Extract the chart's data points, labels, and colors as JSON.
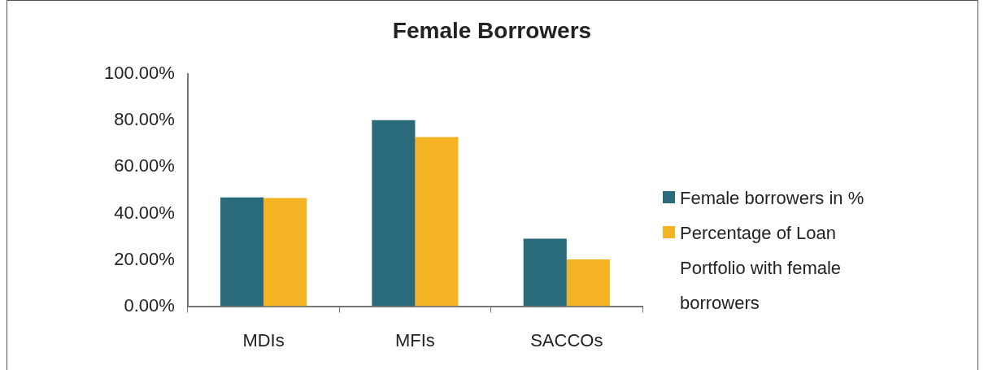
{
  "chart_data": {
    "type": "bar",
    "title": "Female Borrowers",
    "categories": [
      "MDIs",
      "MFIs",
      "SACCOs"
    ],
    "series": [
      {
        "name": "Female borrowers in %",
        "color": "#296a7b",
        "values": [
          46.9,
          80.2,
          29.1
        ]
      },
      {
        "name": "Percentage of Loan Portfolio with female borrowers",
        "color": "#f4b323",
        "values": [
          46.6,
          72.9,
          20.2
        ]
      }
    ],
    "ylim": [
      0,
      100
    ],
    "yticks": [
      {
        "value": 0,
        "label": "0.00%"
      },
      {
        "value": 20,
        "label": "20.00%"
      },
      {
        "value": 40,
        "label": "40.00%"
      },
      {
        "value": 60,
        "label": "60.00%"
      },
      {
        "value": 80,
        "label": "80.00%"
      },
      {
        "value": 100,
        "label": "100.00%"
      }
    ],
    "grid": false,
    "legend": "right"
  }
}
